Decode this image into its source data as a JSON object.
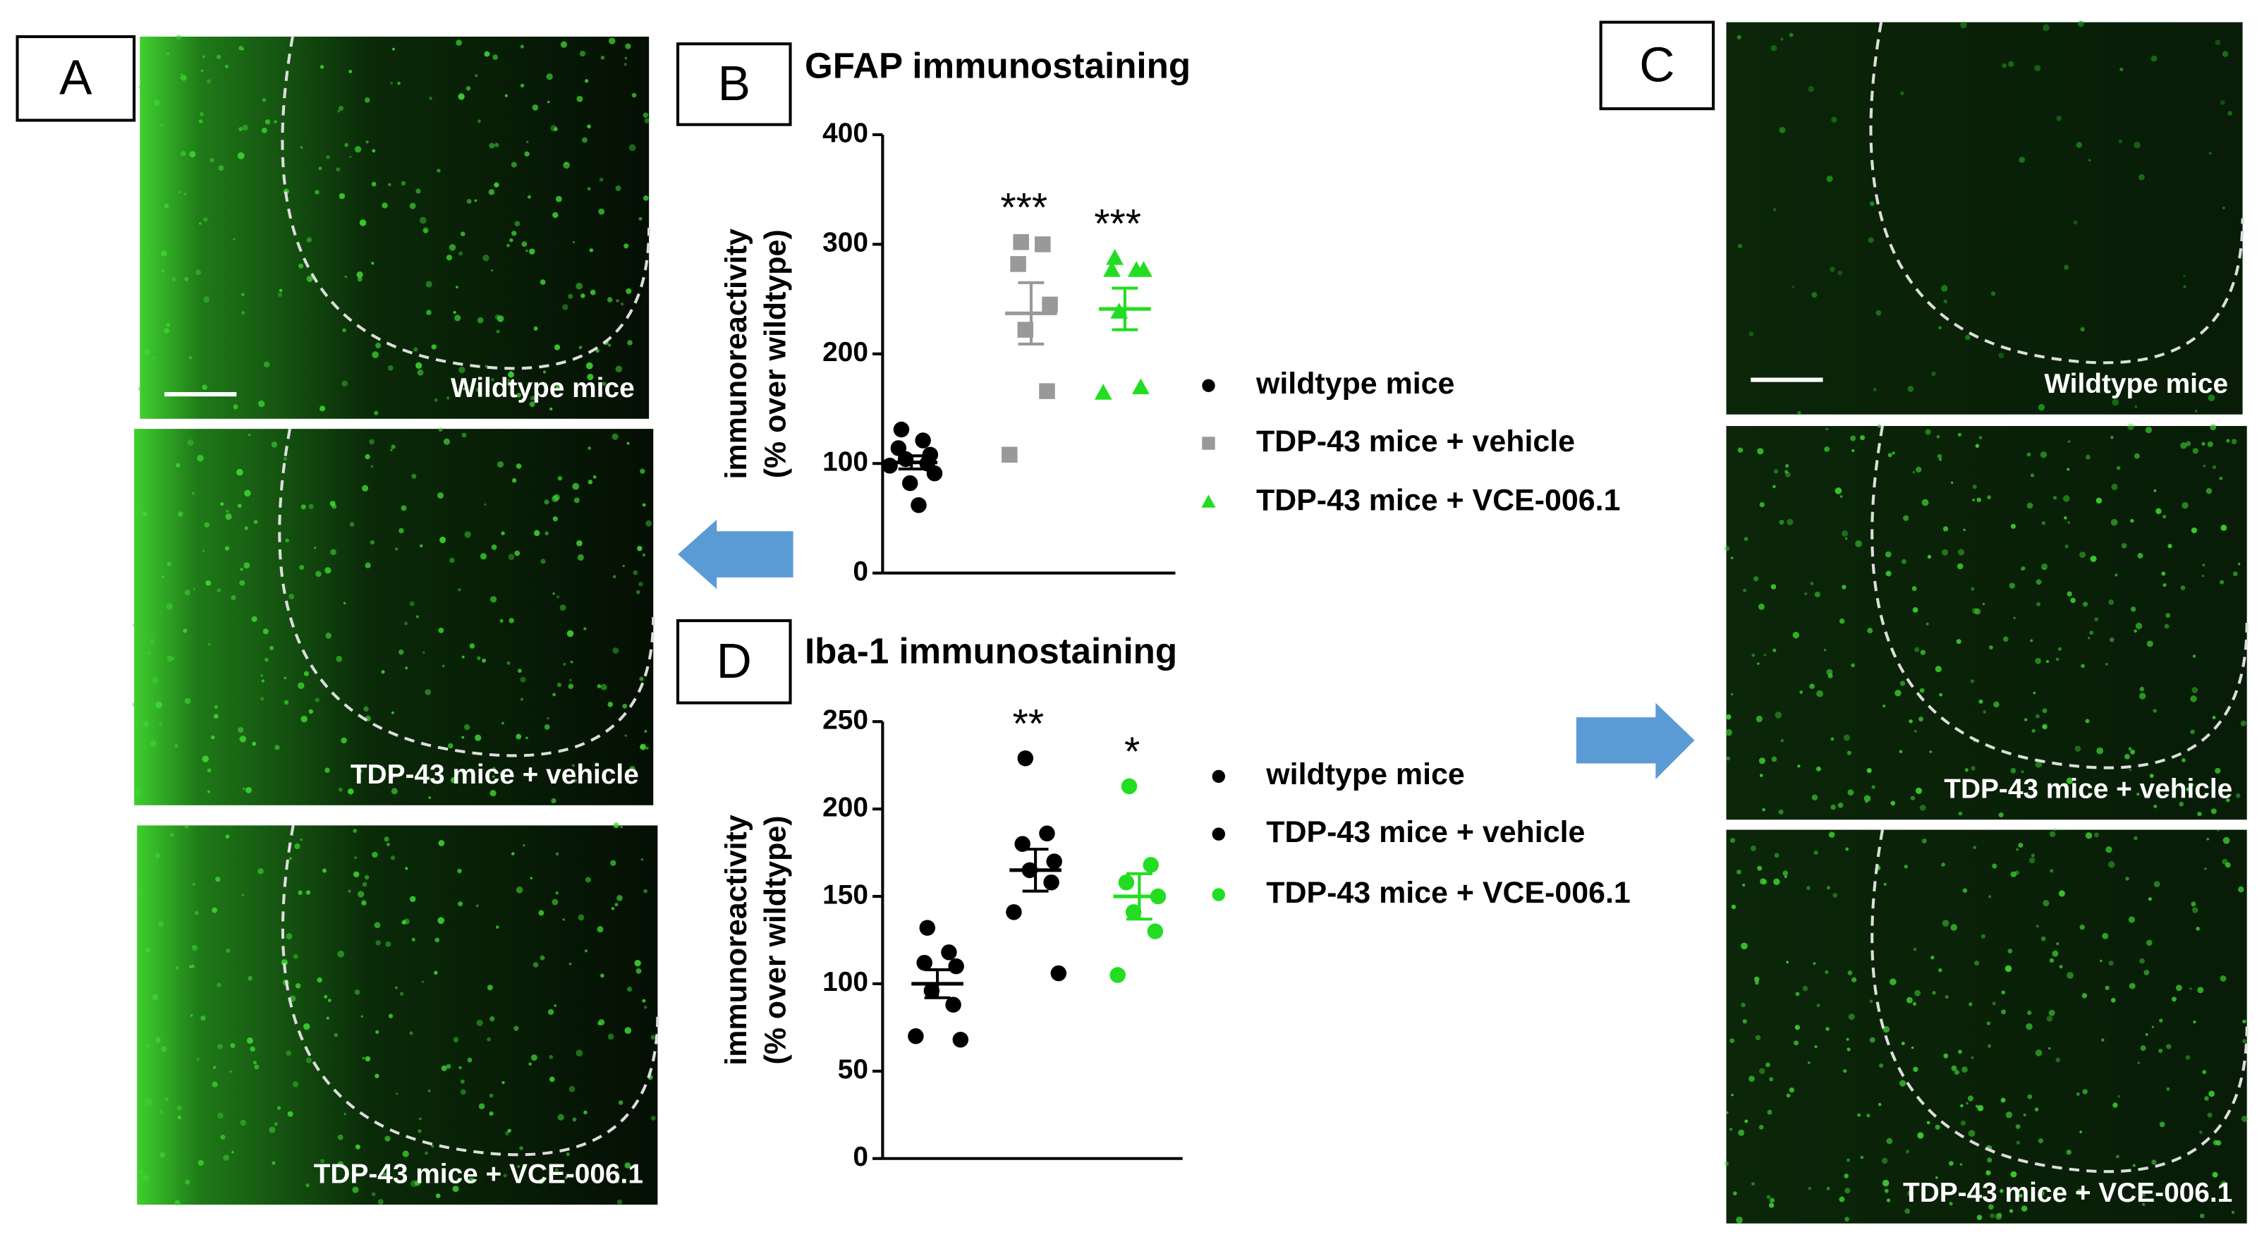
{
  "panel_labels": [
    "A",
    "B",
    "C",
    "D"
  ],
  "image_captions": {
    "A": [
      "Wildtype mice",
      "TDP-43 mice + vehicle",
      "TDP-43 mice + VCE-006.1"
    ],
    "C": [
      "Wildtype mice",
      "TDP-43 mice + vehicle",
      "TDP-43 mice + VCE-006.1"
    ]
  },
  "chart_data": [
    {
      "type": "scatter",
      "title": "GFAP immunostaining",
      "ylabel": [
        "immunoreactivity",
        "(% over wildtype)"
      ],
      "ylim": [
        0,
        400
      ],
      "yticks": [
        0,
        100,
        200,
        300,
        400
      ],
      "series": [
        {
          "name": "wildtype mice",
          "color": "#000000",
          "marker": "circle",
          "values": [
            131,
            121,
            114,
            108,
            104,
            100,
            98,
            91,
            82,
            62
          ],
          "mean": 101,
          "sem": 6
        },
        {
          "name": "TDP-43 mice + vehicle",
          "color": "#999999",
          "marker": "square",
          "values": [
            302,
            300,
            282,
            245,
            222,
            166,
            108
          ],
          "mean": 237,
          "sem": 28,
          "significance": "***"
        },
        {
          "name": "TDP-43 mice + VCE-006.1",
          "color": "#22dd22",
          "marker": "triangle",
          "values": [
            287,
            276,
            276,
            276,
            238,
            169,
            164
          ],
          "mean": 241,
          "sem": 19,
          "significance": "***"
        }
      ]
    },
    {
      "type": "scatter",
      "title": "Iba-1 immunostaining",
      "ylabel": [
        "immunoreactivity",
        "(% over wildtype)"
      ],
      "ylim": [
        0,
        250
      ],
      "yticks": [
        0,
        50,
        100,
        150,
        200,
        250
      ],
      "series": [
        {
          "name": "wildtype mice",
          "color": "#000000",
          "marker": "circle",
          "values": [
            132,
            118,
            112,
            110,
            96,
            88,
            70,
            68
          ],
          "mean": 100,
          "sem": 8
        },
        {
          "name": "TDP-43 mice + vehicle",
          "color": "#000000",
          "marker": "circle",
          "values": [
            229,
            186,
            180,
            170,
            165,
            158,
            141,
            106
          ],
          "mean": 165,
          "sem": 12,
          "significance": "**"
        },
        {
          "name": "TDP-43 mice + VCE-006.1",
          "color": "#22dd22",
          "marker": "circle",
          "values": [
            213,
            168,
            158,
            150,
            141,
            130,
            105
          ],
          "mean": 150,
          "sem": 13,
          "significance": "*"
        }
      ]
    }
  ]
}
